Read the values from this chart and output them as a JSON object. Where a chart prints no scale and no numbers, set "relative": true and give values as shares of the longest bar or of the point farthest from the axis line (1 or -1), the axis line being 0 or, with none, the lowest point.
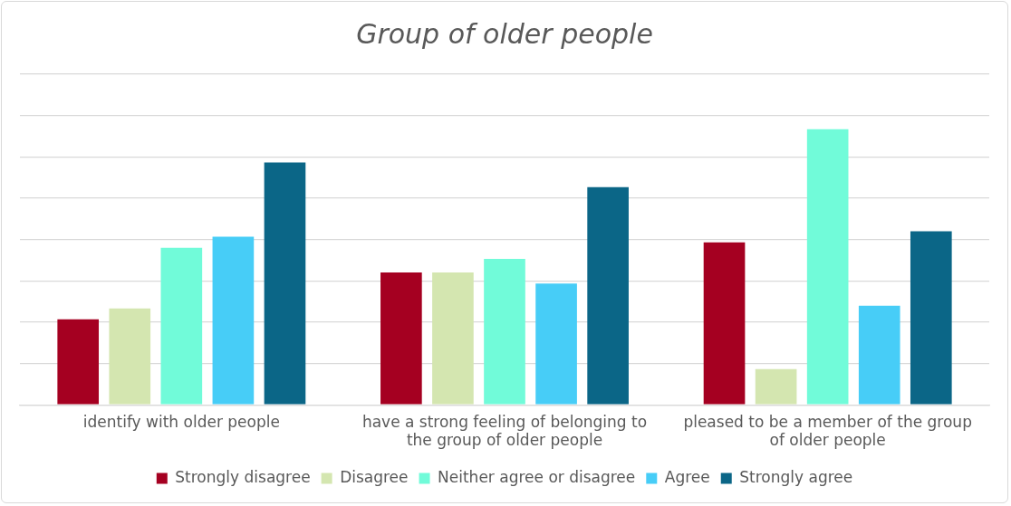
{
  "chart_data": {
    "type": "bar",
    "title": "Group of older people",
    "relative": true,
    "grid": "y",
    "legend": "bottom",
    "categories": [
      "identify with older people",
      "have a strong feeling of belonging to the group of older people",
      "pleased to be a member of the group of older people"
    ],
    "series": [
      {
        "name": "Strongly disagree",
        "color": "#a50021",
        "values": [
          0.31,
          0.48,
          0.59
        ]
      },
      {
        "name": "Disagree",
        "color": "#d4e6b0",
        "values": [
          0.35,
          0.48,
          0.13
        ]
      },
      {
        "name": "Neither agree or disagree",
        "color": "#71fbd9",
        "values": [
          0.57,
          0.53,
          1
        ]
      },
      {
        "name": "Agree",
        "color": "#47cdf7",
        "values": [
          0.61,
          0.44,
          0.36
        ]
      },
      {
        "name": "Strongly agree",
        "color": "#0b6687",
        "values": [
          0.88,
          0.79,
          0.63
        ]
      }
    ]
  }
}
